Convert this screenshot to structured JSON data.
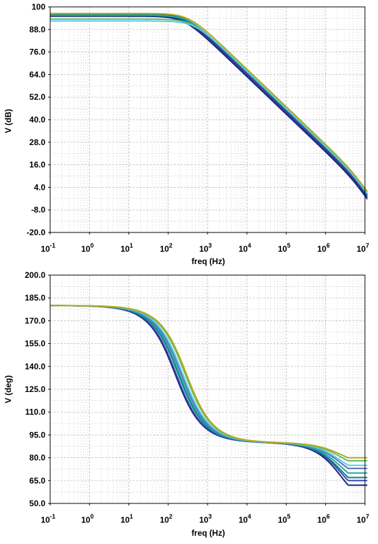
{
  "chart_data": [
    {
      "type": "line",
      "xlabel": "freq (Hz)",
      "ylabel": "V (dB)",
      "xscale": "log",
      "xlim": [
        0.1,
        10000000
      ],
      "ylim": [
        -20,
        100
      ],
      "x_ticks": [
        {
          "base": "10",
          "exp": "-1"
        },
        {
          "base": "10",
          "exp": "0"
        },
        {
          "base": "10",
          "exp": "1"
        },
        {
          "base": "10",
          "exp": "2"
        },
        {
          "base": "10",
          "exp": "3"
        },
        {
          "base": "10",
          "exp": "4"
        },
        {
          "base": "10",
          "exp": "5"
        },
        {
          "base": "10",
          "exp": "6"
        },
        {
          "base": "10",
          "exp": "7"
        }
      ],
      "y_ticks": [
        "100",
        "88.0",
        "76.0",
        "64.0",
        "52.0",
        "40.0",
        "28.0",
        "16.0",
        "4.0",
        "-8.0",
        "-20.0"
      ],
      "grid": true,
      "series": [
        {
          "color": "#1a237e",
          "dc_gain": 95.0,
          "pole_hz": 250,
          "x_end": 12000000,
          "y_end": -8.5
        },
        {
          "color": "#283593",
          "dc_gain": 95.5,
          "pole_hz": 265,
          "x_end": 12000000,
          "y_end": -7.0
        },
        {
          "color": "#3949ab",
          "dc_gain": 96.0,
          "pole_hz": 280,
          "x_end": 12000000,
          "y_end": -5.5
        },
        {
          "color": "#00838f",
          "dc_gain": 96.0,
          "pole_hz": 300,
          "x_end": 12000000,
          "y_end": -4.0
        },
        {
          "color": "#26a69a",
          "dc_gain": 95.5,
          "pole_hz": 320,
          "x_end": 12000000,
          "y_end": -3.0
        },
        {
          "color": "#66bb6a",
          "dc_gain": 93.5,
          "pole_hz": 410,
          "x_end": 12000000,
          "y_end": -2.0
        },
        {
          "color": "#4dd0e1",
          "dc_gain": 92.5,
          "pole_hz": 470,
          "x_end": 12000000,
          "y_end": -1.5
        },
        {
          "color": "#b7a81a",
          "dc_gain": 96.5,
          "pole_hz": 330,
          "x_end": 12000000,
          "y_end": -0.5
        }
      ]
    },
    {
      "type": "line",
      "xlabel": "freq (Hz)",
      "ylabel": "V (deg)",
      "xscale": "log",
      "xlim": [
        0.1,
        10000000
      ],
      "ylim": [
        50,
        200
      ],
      "x_ticks": [
        {
          "base": "10",
          "exp": "-1"
        },
        {
          "base": "10",
          "exp": "0"
        },
        {
          "base": "10",
          "exp": "1"
        },
        {
          "base": "10",
          "exp": "2"
        },
        {
          "base": "10",
          "exp": "3"
        },
        {
          "base": "10",
          "exp": "4"
        },
        {
          "base": "10",
          "exp": "5"
        },
        {
          "base": "10",
          "exp": "6"
        },
        {
          "base": "10",
          "exp": "7"
        }
      ],
      "y_ticks": [
        "200.0",
        "185.0",
        "170.0",
        "155.0",
        "140.0",
        "125.0",
        "110.0",
        "95.0",
        "80.0",
        "65.0",
        "50.0"
      ],
      "grid": true,
      "series": [
        {
          "color": "#1a237e",
          "start_deg": 180,
          "mid_deg": 90,
          "pole_hz": 150,
          "end_deg": 62
        },
        {
          "color": "#3949ab",
          "start_deg": 180,
          "mid_deg": 90,
          "pole_hz": 160,
          "end_deg": 65
        },
        {
          "color": "#00838f",
          "start_deg": 180,
          "mid_deg": 90,
          "pole_hz": 180,
          "end_deg": 67
        },
        {
          "color": "#26a69a",
          "start_deg": 180,
          "mid_deg": 90,
          "pole_hz": 195,
          "end_deg": 70
        },
        {
          "color": "#5c6bc0",
          "start_deg": 180,
          "mid_deg": 90,
          "pole_hz": 215,
          "end_deg": 73
        },
        {
          "color": "#4dd0e1",
          "start_deg": 180,
          "mid_deg": 90,
          "pole_hz": 235,
          "end_deg": 75
        },
        {
          "color": "#66bb6a",
          "start_deg": 180,
          "mid_deg": 90,
          "pole_hz": 270,
          "end_deg": 78
        },
        {
          "color": "#b7a81a",
          "start_deg": 180,
          "mid_deg": 90,
          "pole_hz": 290,
          "end_deg": 80
        }
      ]
    }
  ]
}
